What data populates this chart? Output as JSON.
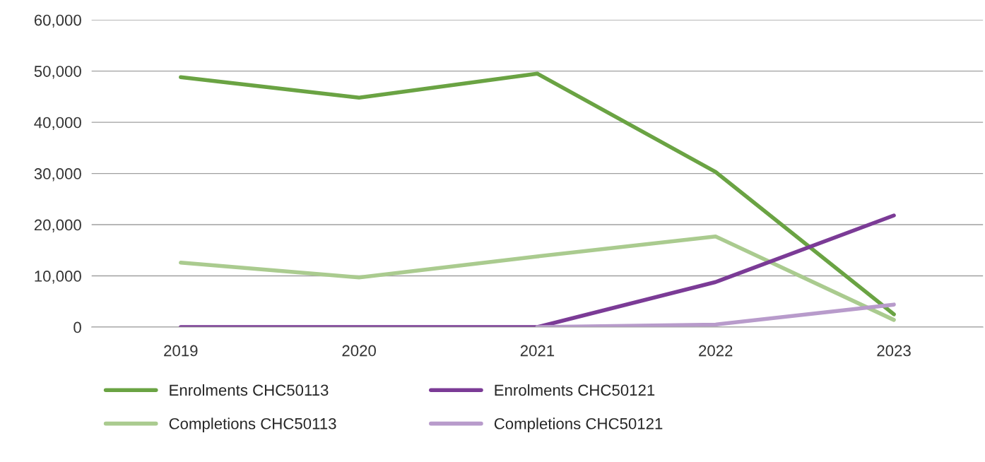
{
  "chart_data": {
    "type": "line",
    "categories": [
      "2019",
      "2020",
      "2021",
      "2022",
      "2023"
    ],
    "series": [
      {
        "name": "Enrolments CHC50113",
        "color": "#6aa343",
        "values": [
          48800,
          44800,
          49500,
          30300,
          2500
        ]
      },
      {
        "name": "Completions CHC50113",
        "color": "#aacb8f",
        "values": [
          12600,
          9700,
          13800,
          17700,
          1400
        ]
      },
      {
        "name": "Enrolments CHC50121",
        "color": "#7b3b96",
        "values": [
          0,
          0,
          0,
          8800,
          21800
        ]
      },
      {
        "name": "Completions CHC50121",
        "color": "#b89bcb",
        "values": [
          null,
          null,
          0,
          500,
          4400
        ]
      }
    ],
    "ylim": [
      0,
      60000
    ],
    "yticks": [
      {
        "value": 0,
        "label": "0"
      },
      {
        "value": 10000,
        "label": "10,000"
      },
      {
        "value": 20000,
        "label": "20,000"
      },
      {
        "value": 30000,
        "label": "30,000"
      },
      {
        "value": 40000,
        "label": "40,000"
      },
      {
        "value": 50000,
        "label": "50,000"
      },
      {
        "value": 60000,
        "label": "60,000"
      }
    ],
    "grid": "y",
    "legend": "bottom",
    "marker": "none",
    "line_style": "solid"
  }
}
